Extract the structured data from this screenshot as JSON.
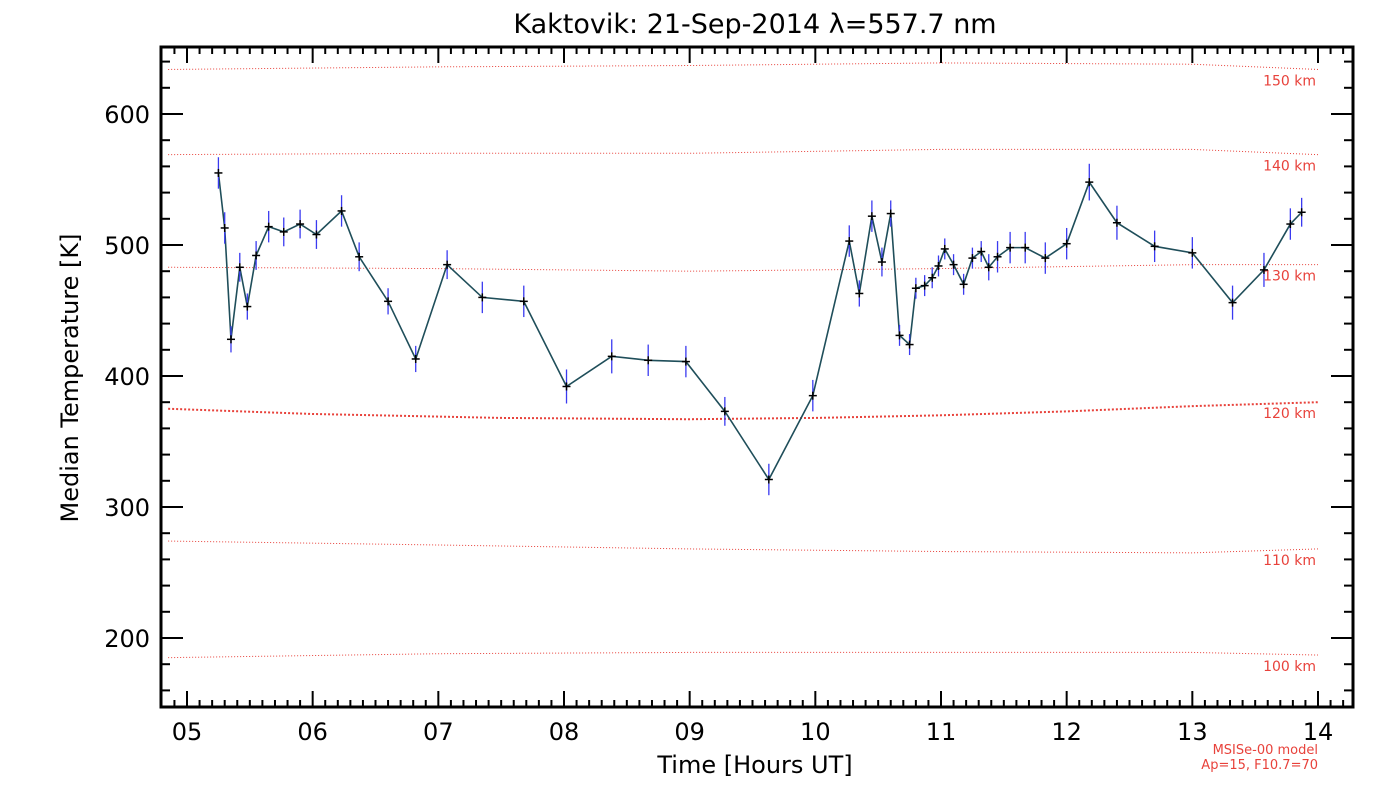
{
  "chart_data": {
    "type": "line",
    "title": "Kaktovik: 21-Sep-2014 λ=557.7 nm",
    "xlabel": "Time [Hours UT]",
    "ylabel": "Median Temperature [K]",
    "xlim": [
      4.85,
      14.2
    ],
    "ylim": [
      150,
      650
    ],
    "xticks": [
      5,
      6,
      7,
      8,
      9,
      10,
      11,
      12,
      13,
      14
    ],
    "xtick_labels": [
      "05",
      "06",
      "07",
      "08",
      "09",
      "10",
      "11",
      "12",
      "13",
      "14"
    ],
    "yticks": [
      200,
      300,
      400,
      500,
      600
    ],
    "ytick_labels": [
      "200",
      "300",
      "400",
      "500",
      "600"
    ],
    "grid": false,
    "colors": {
      "line": "#1f4e5a",
      "errorbar": "#3a3af0",
      "marker": "#000000",
      "model": "#e8423b"
    },
    "series": [
      {
        "x": [
          5.25,
          5.3,
          5.35,
          5.42,
          5.48,
          5.55,
          5.65,
          5.77,
          5.9,
          6.03,
          6.23,
          6.37,
          6.6,
          6.82,
          7.07,
          7.35,
          7.68,
          8.02,
          8.38,
          8.67,
          8.97,
          9.28,
          9.63,
          9.98,
          10.27,
          10.35,
          10.45,
          10.53,
          10.6,
          10.67,
          10.75,
          10.8,
          10.87,
          10.93,
          10.98,
          11.03,
          11.1,
          11.18,
          11.25,
          11.32,
          11.38,
          11.45,
          11.55,
          11.67,
          11.83,
          12.0,
          12.18,
          12.4,
          12.7,
          13.0,
          13.32,
          13.57,
          13.78,
          13.87
        ],
        "y": [
          555,
          513,
          428,
          483,
          453,
          492,
          514,
          510,
          516,
          508,
          526,
          491,
          457,
          413,
          485,
          460,
          457,
          392,
          415,
          412,
          411,
          373,
          321,
          385,
          503,
          463,
          522,
          487,
          524,
          431,
          424,
          467,
          469,
          475,
          484,
          497,
          485,
          470,
          490,
          495,
          483,
          491,
          498,
          498,
          490,
          501,
          548,
          517,
          499,
          494,
          456,
          481,
          516,
          525
        ],
        "err": [
          12,
          12,
          10,
          11,
          10,
          11,
          12,
          11,
          11,
          11,
          12,
          11,
          10,
          10,
          11,
          12,
          12,
          13,
          13,
          12,
          12,
          11,
          12,
          12,
          12,
          10,
          12,
          11,
          10,
          8,
          8,
          8,
          8,
          8,
          8,
          8,
          8,
          8,
          8,
          8,
          10,
          12,
          12,
          12,
          12,
          12,
          14,
          13,
          12,
          12,
          13,
          13,
          12,
          11
        ]
      }
    ],
    "model_curves": [
      {
        "label": "150 km",
        "x": [
          4.85,
          7.0,
          9.0,
          11.0,
          13.0,
          14.0
        ],
        "y": [
          634,
          636,
          637,
          639,
          638,
          634
        ]
      },
      {
        "label": "140 km",
        "x": [
          4.85,
          7.0,
          9.0,
          11.0,
          13.0,
          14.0
        ],
        "y": [
          569,
          570,
          570,
          573,
          573,
          569
        ]
      },
      {
        "label": "130 km",
        "x": [
          4.85,
          7.0,
          9.0,
          11.0,
          13.0,
          14.0
        ],
        "y": [
          483,
          482,
          480,
          482,
          485,
          485
        ]
      },
      {
        "label": "120 km",
        "x": [
          4.85,
          6.0,
          7.5,
          9.0,
          10.0,
          11.0,
          12.0,
          13.0,
          14.0
        ],
        "y": [
          375,
          371,
          368,
          367,
          368,
          370,
          373,
          377,
          380
        ]
      },
      {
        "label": "110 km",
        "x": [
          4.85,
          7.0,
          9.0,
          11.0,
          13.0,
          14.0
        ],
        "y": [
          274,
          271,
          268,
          266,
          265,
          268
        ]
      },
      {
        "label": "100 km",
        "x": [
          4.85,
          7.0,
          9.0,
          11.0,
          13.0,
          14.0
        ],
        "y": [
          185,
          188,
          189,
          189,
          189,
          187
        ]
      }
    ],
    "alt_label_anchor": [
      150,
      140,
      130,
      120,
      110,
      100
    ],
    "model_note": [
      "MSISe-00 model",
      "Ap=15, F10.7=70"
    ]
  }
}
